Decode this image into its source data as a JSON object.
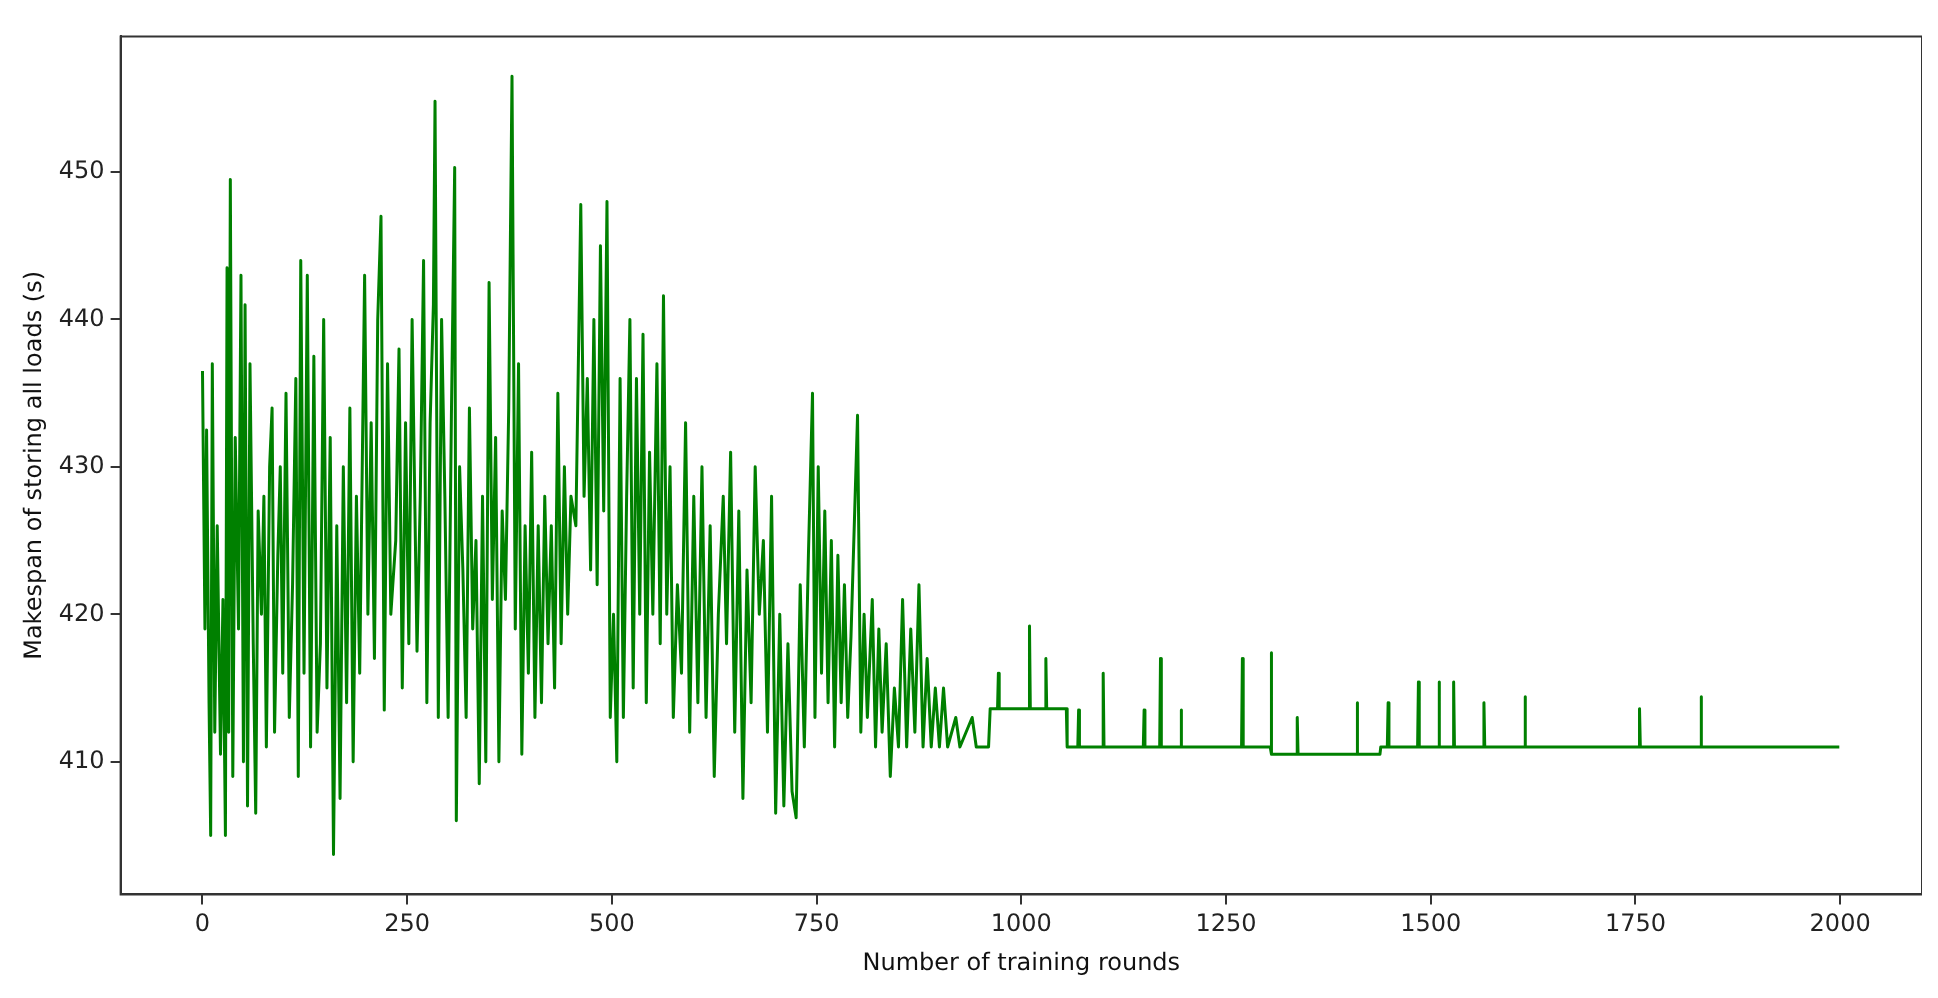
{
  "chart_data": {
    "type": "line",
    "xlabel": "Number of training rounds",
    "ylabel": "Makespan of storing all loads (s)",
    "xlim": [
      -100,
      2100
    ],
    "ylim": [
      401,
      459.2
    ],
    "xticks": [
      0,
      250,
      500,
      750,
      1000,
      1250,
      1500,
      1750,
      2000
    ],
    "yticks": [
      410,
      420,
      430,
      440,
      450
    ],
    "series": [
      {
        "color": "#008000",
        "x": [
          0,
          3,
          5,
          8,
          10,
          12,
          15,
          18,
          22,
          25,
          28,
          30,
          32,
          34,
          37,
          40,
          44,
          47,
          50,
          52,
          55,
          58,
          62,
          65,
          68,
          72,
          75,
          78,
          82,
          85,
          88,
          92,
          95,
          98,
          102,
          106,
          110,
          114,
          117,
          120,
          124,
          128,
          132,
          136,
          140,
          144,
          148,
          152,
          156,
          160,
          164,
          168,
          172,
          176,
          180,
          184,
          188,
          192,
          198,
          202,
          206,
          210,
          214,
          218,
          222,
          226,
          230,
          236,
          240,
          244,
          248,
          252,
          256,
          262,
          266,
          270,
          274,
          278,
          282,
          284,
          288,
          292,
          296,
          300,
          304,
          308,
          310,
          314,
          318,
          322,
          326,
          330,
          334,
          338,
          342,
          346,
          350,
          354,
          358,
          362,
          366,
          370,
          374,
          378,
          382,
          386,
          390,
          394,
          398,
          402,
          406,
          410,
          414,
          418,
          422,
          426,
          430,
          434,
          438,
          442,
          446,
          450,
          456,
          462,
          466,
          470,
          474,
          478,
          482,
          486,
          490,
          494,
          498,
          502,
          506,
          510,
          514,
          518,
          522,
          526,
          530,
          534,
          538,
          542,
          546,
          550,
          555,
          559,
          563,
          567,
          571,
          575,
          580,
          585,
          590,
          595,
          600,
          605,
          610,
          615,
          620,
          625,
          630,
          636,
          640,
          645,
          650,
          655,
          660,
          665,
          670,
          675,
          680,
          685,
          690,
          695,
          700,
          705,
          710,
          715,
          720,
          725,
          730,
          735,
          740,
          745,
          748,
          752,
          756,
          760,
          764,
          768,
          772,
          776,
          780,
          784,
          788,
          792,
          800,
          804,
          808,
          812,
          818,
          822,
          826,
          830,
          835,
          840,
          845,
          850,
          855,
          860,
          865,
          870,
          875,
          880,
          885,
          890,
          895,
          900,
          905,
          910,
          920,
          925,
          940,
          945,
          960,
          962,
          971,
          972,
          973,
          1009,
          1010,
          1011,
          1029,
          1030,
          1031,
          1055,
          1056,
          1069,
          1070,
          1071,
          1099,
          1100,
          1101,
          1149,
          1150,
          1151,
          1169,
          1170,
          1171,
          1194,
          1195,
          1196,
          1269,
          1270,
          1271,
          1304,
          1305,
          1306,
          1336,
          1337,
          1338,
          1409,
          1410,
          1411,
          1438,
          1439,
          1447,
          1448,
          1449,
          1484,
          1485,
          1486,
          1509,
          1510,
          1511,
          1527,
          1528,
          1529,
          1564,
          1565,
          1566,
          1614,
          1615,
          1616,
          1754,
          1755,
          1756,
          1829,
          1830,
          1831,
          1999
        ],
        "values": [
          436.5,
          419,
          432.5,
          414,
          405,
          437,
          412,
          426,
          410.5,
          421,
          405,
          443.5,
          412,
          449.5,
          409,
          432,
          419,
          443,
          410,
          441,
          407,
          437,
          418,
          406.5,
          427,
          420,
          428,
          411,
          430,
          434,
          412,
          424,
          430,
          416,
          435,
          413,
          422,
          436,
          409,
          444,
          416,
          443,
          411,
          437.5,
          412,
          418,
          440,
          415,
          432,
          403.7,
          426,
          407.5,
          430,
          414,
          434,
          410,
          428,
          416,
          443,
          420,
          433,
          417,
          440,
          447,
          413.5,
          437,
          420,
          425,
          438,
          415,
          433,
          418,
          440,
          417.5,
          428,
          444,
          414,
          433,
          441,
          454.8,
          413,
          440,
          428,
          413,
          433.5,
          450.3,
          406,
          430,
          423,
          413,
          434,
          419,
          425,
          408.5,
          428,
          410,
          442.5,
          421,
          432,
          410,
          427,
          421,
          434,
          456.5,
          419,
          437,
          410.5,
          426,
          416,
          431,
          413,
          426,
          414,
          428,
          418,
          426,
          415,
          435,
          418,
          430,
          420,
          428,
          426,
          447.8,
          428,
          436,
          423,
          440,
          422,
          445,
          427,
          448,
          413,
          420,
          410,
          436,
          413,
          428,
          440,
          415,
          436,
          420,
          439,
          414,
          431,
          420,
          437,
          418,
          441.6,
          420,
          430,
          413,
          422,
          416,
          433,
          412,
          428,
          414,
          430,
          413,
          426,
          409,
          420,
          428,
          418,
          431,
          412,
          427,
          407.5,
          423,
          414,
          430,
          420,
          425,
          412,
          428,
          406.5,
          420,
          407,
          418,
          408,
          406.2,
          422,
          411,
          424,
          435,
          413,
          430,
          416,
          427,
          414,
          425,
          411,
          424,
          414,
          422,
          413,
          418.5,
          433.5,
          412,
          420,
          413,
          421,
          411,
          419,
          412,
          418,
          409,
          415,
          411,
          421,
          411,
          419,
          412,
          422,
          411,
          417,
          411,
          415,
          411,
          415,
          411,
          413,
          411,
          413,
          411,
          411,
          413.6,
          413.6,
          416,
          413.6,
          413.6,
          419.2,
          413.6,
          413.6,
          417,
          413.6,
          413.6,
          411,
          411,
          413.5,
          411,
          411,
          416,
          411,
          411,
          413.5,
          411,
          411,
          417,
          411,
          411,
          413.5,
          411,
          411,
          417,
          411,
          411,
          417.4,
          410.5,
          410.5,
          413,
          410.5,
          410.5,
          414,
          410.5,
          410.5,
          411,
          411,
          414,
          411,
          411,
          415.4,
          411,
          411,
          415.4,
          411,
          411,
          415.4,
          411,
          411,
          414,
          411,
          411,
          414.4,
          411,
          411,
          413.6,
          411,
          411,
          414.4,
          411,
          411
        ]
      }
    ]
  }
}
